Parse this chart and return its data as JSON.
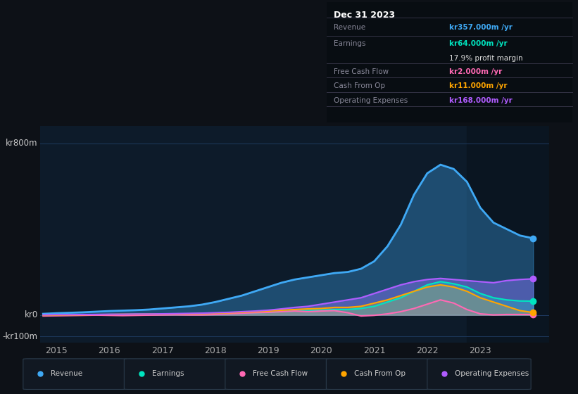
{
  "bg_color": "#0d1117",
  "plot_bg_color": "#0d1b2a",
  "grid_color": "#1e3a5f",
  "title_text": "Dec 31 2023",
  "table_rows": [
    {
      "label": "Revenue",
      "value": "kr357.000m /yr",
      "value_color": "#3fa9f5",
      "extra": null
    },
    {
      "label": "Earnings",
      "value": "kr64.000m /yr",
      "value_color": "#00e5c0",
      "extra": "17.9% profit margin"
    },
    {
      "label": "Free Cash Flow",
      "value": "kr2.000m /yr",
      "value_color": "#ff69b4",
      "extra": null
    },
    {
      "label": "Cash From Op",
      "value": "kr11.000m /yr",
      "value_color": "#ffa500",
      "extra": null
    },
    {
      "label": "Operating Expenses",
      "value": "kr168.000m /yr",
      "value_color": "#b05cff",
      "extra": null
    }
  ],
  "yticks": [
    "kr800m",
    "kr0",
    "-kr100m"
  ],
  "ytick_vals": [
    800,
    0,
    -100
  ],
  "ylim": [
    -130,
    880
  ],
  "xlim": [
    2014.7,
    2024.3
  ],
  "xticks": [
    2015,
    2016,
    2017,
    2018,
    2019,
    2020,
    2021,
    2022,
    2023
  ],
  "shade_start": 2022.75,
  "legend": [
    {
      "label": "Revenue",
      "color": "#3fa9f5"
    },
    {
      "label": "Earnings",
      "color": "#00e5c0"
    },
    {
      "label": "Free Cash Flow",
      "color": "#ff69b4"
    },
    {
      "label": "Cash From Op",
      "color": "#ffa500"
    },
    {
      "label": "Operating Expenses",
      "color": "#b05cff"
    }
  ],
  "series": {
    "x": [
      2014.75,
      2015.0,
      2015.25,
      2015.5,
      2015.75,
      2016.0,
      2016.25,
      2016.5,
      2016.75,
      2017.0,
      2017.25,
      2017.5,
      2017.75,
      2018.0,
      2018.25,
      2018.5,
      2018.75,
      2019.0,
      2019.25,
      2019.5,
      2019.75,
      2020.0,
      2020.25,
      2020.5,
      2020.75,
      2021.0,
      2021.25,
      2021.5,
      2021.75,
      2022.0,
      2022.25,
      2022.5,
      2022.75,
      2023.0,
      2023.25,
      2023.5,
      2023.75,
      2024.0
    ],
    "revenue": [
      5,
      8,
      10,
      12,
      15,
      18,
      20,
      22,
      25,
      30,
      35,
      40,
      48,
      60,
      75,
      90,
      110,
      130,
      150,
      165,
      175,
      185,
      195,
      200,
      215,
      250,
      320,
      420,
      560,
      660,
      700,
      680,
      620,
      500,
      430,
      400,
      370,
      357
    ],
    "earnings": [
      -2,
      -1,
      0,
      0,
      1,
      2,
      2,
      3,
      3,
      4,
      5,
      5,
      6,
      7,
      8,
      9,
      10,
      12,
      15,
      18,
      20,
      22,
      25,
      25,
      30,
      40,
      60,
      80,
      110,
      140,
      155,
      145,
      130,
      100,
      80,
      70,
      65,
      64
    ],
    "fcf": [
      -5,
      -4,
      -3,
      -2,
      -1,
      -2,
      -3,
      -2,
      -1,
      0,
      1,
      0,
      0,
      2,
      5,
      8,
      10,
      12,
      15,
      18,
      15,
      18,
      20,
      10,
      -5,
      -2,
      5,
      15,
      30,
      50,
      70,
      55,
      25,
      5,
      0,
      2,
      2,
      2
    ],
    "cashfromop": [
      -2,
      -1,
      0,
      1,
      2,
      2,
      3,
      3,
      4,
      4,
      5,
      5,
      6,
      8,
      10,
      12,
      15,
      18,
      22,
      25,
      28,
      30,
      35,
      35,
      40,
      55,
      70,
      90,
      110,
      130,
      140,
      130,
      110,
      80,
      60,
      40,
      20,
      11
    ],
    "opex": [
      0,
      1,
      1,
      2,
      2,
      3,
      3,
      4,
      4,
      5,
      6,
      7,
      8,
      10,
      12,
      15,
      18,
      22,
      28,
      35,
      40,
      50,
      60,
      70,
      80,
      100,
      120,
      140,
      155,
      165,
      170,
      165,
      160,
      155,
      150,
      160,
      165,
      168
    ]
  }
}
